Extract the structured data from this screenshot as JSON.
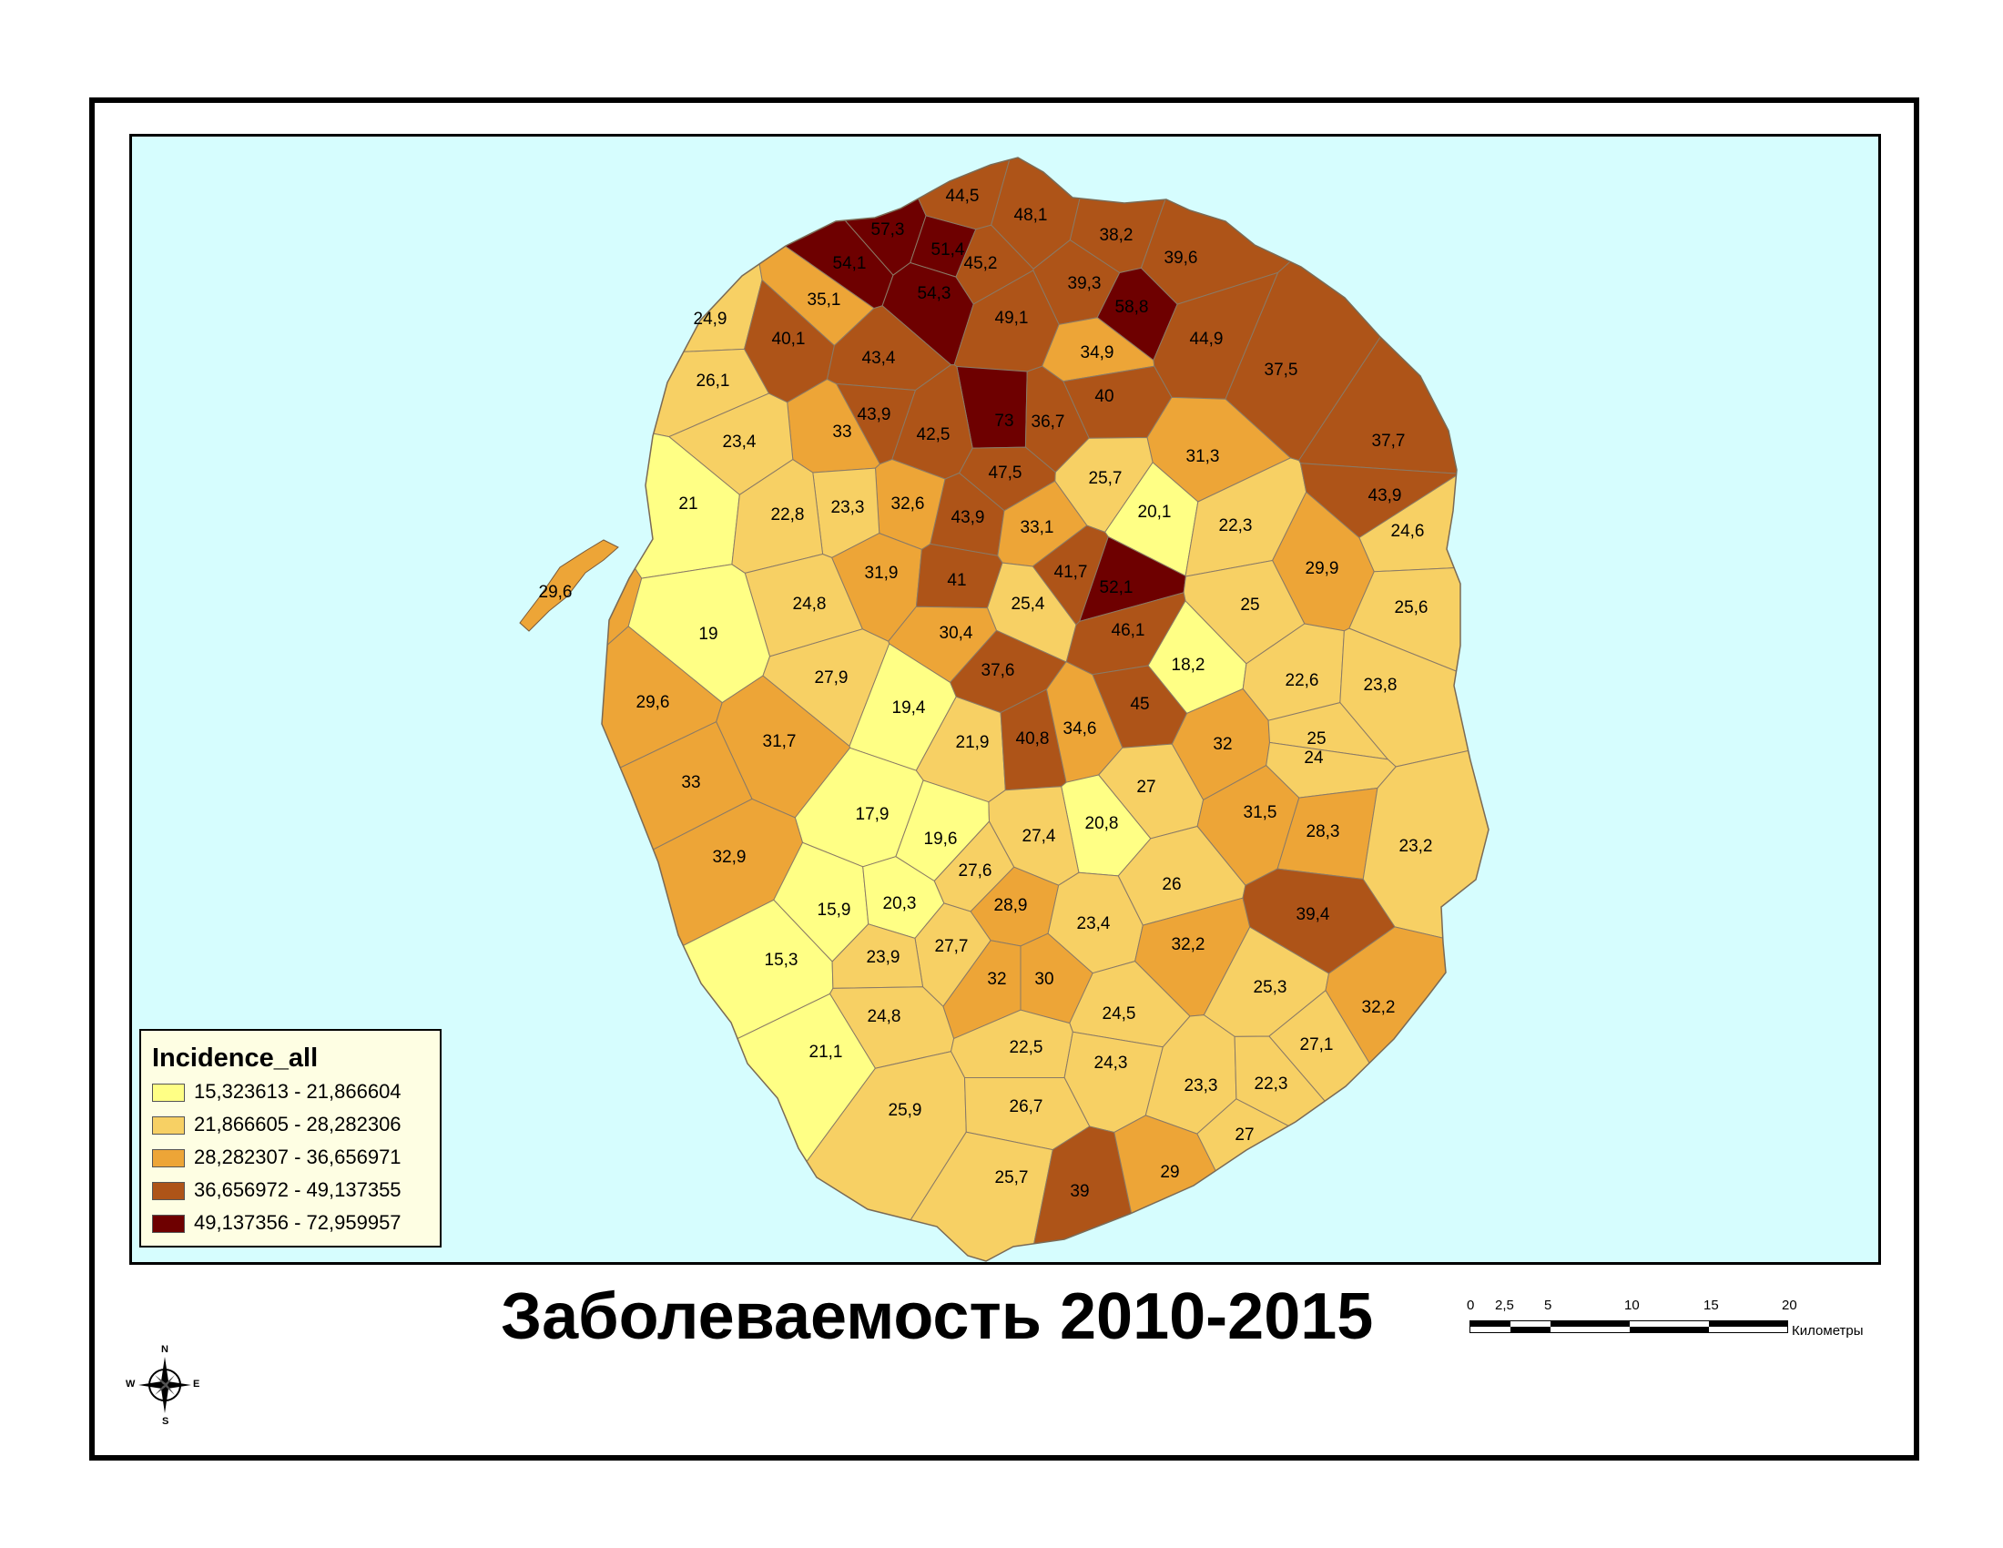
{
  "map": {
    "title": "Заболеваемость 2010-2015",
    "legend": {
      "title": "Incidence_all",
      "classes": [
        {
          "label": "15,323613 - 21,866604",
          "color": "#ffff85"
        },
        {
          "label": "21,866605 - 28,282306",
          "color": "#f7d064"
        },
        {
          "label": "28,282307 - 36,656971",
          "color": "#eda537"
        },
        {
          "label": "36,656972 - 49,137355",
          "color": "#ae5418"
        },
        {
          "label": "49,137356 - 72,959957",
          "color": "#6e0000"
        }
      ]
    },
    "background_color": "#d6fdfe",
    "scale_bar": {
      "ticks": [
        "0",
        "2,5",
        "5",
        "10",
        "15",
        "20"
      ],
      "unit": "Километры"
    },
    "north_arrow": {
      "icon": "compass-rose-icon",
      "labels": {
        "n": "N",
        "s": "S",
        "e": "E",
        "w": "W"
      }
    },
    "district_values": [
      "57,3",
      "51,4",
      "54,1",
      "54,3",
      "45,2",
      "44,5",
      "48,1",
      "38,2",
      "39,6",
      "39,3",
      "58,8",
      "49,1",
      "35,1",
      "24,9",
      "40,1",
      "43,4",
      "26,1",
      "44,9",
      "37,5",
      "34,9",
      "40",
      "73",
      "36,7",
      "43,9",
      "42,5",
      "33",
      "23,4",
      "31,3",
      "37,7",
      "25,7",
      "47,5",
      "21",
      "32,6",
      "23,3",
      "22,8",
      "43,9",
      "20,1",
      "22,3",
      "43,9",
      "33,1",
      "24,6",
      "31,9",
      "41",
      "41,7",
      "52,1",
      "29,9",
      "29,6",
      "25,4",
      "25",
      "25,6",
      "24,8",
      "30,4",
      "46,1",
      "19",
      "18,2",
      "37,6",
      "27,9",
      "22,6",
      "23,8",
      "29,6",
      "19,4",
      "45",
      "21,9",
      "40,8",
      "34,6",
      "32",
      "25",
      "24",
      "31,7",
      "33",
      "27",
      "17,9",
      "20,8",
      "31,5",
      "28,3",
      "23,2",
      "19,6",
      "27,4",
      "32,9",
      "27,6",
      "26",
      "28,9",
      "15,9",
      "20,3",
      "39,4",
      "23,4",
      "27,7",
      "15,3",
      "23,9",
      "32,2",
      "32",
      "30",
      "25,3",
      "24,5",
      "32,2",
      "24,8",
      "21,1",
      "22,5",
      "24,3",
      "27,1",
      "23,3",
      "22,3",
      "25,9",
      "26,7",
      "27",
      "25,7",
      "39",
      "29"
    ]
  }
}
